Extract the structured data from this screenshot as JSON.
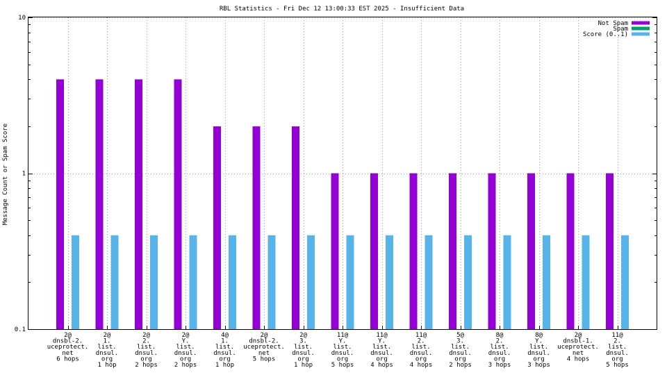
{
  "chart_data": {
    "type": "bar",
    "title": "RBL Statistics - Fri Dec 12 13:00:33 EST 2025 - Insufficient Data",
    "xlabel": "",
    "ylabel": "Message Count or Spam Score",
    "yscale": "log",
    "ylim": [
      0.1,
      10
    ],
    "yticks": [
      "10",
      "1",
      "0.1"
    ],
    "grid": true,
    "legend_position": "top-right",
    "categories": [
      [
        "2@",
        "dnsbl-2.",
        "uceprotect.",
        "net",
        "6 hops"
      ],
      [
        "2@",
        "1.",
        "list.",
        "dnsul.",
        "org",
        "1 hop"
      ],
      [
        "2@",
        "2.",
        "list.",
        "dnsul.",
        "org",
        "2 hops"
      ],
      [
        "2@",
        "Y.",
        "list.",
        "dnsul.",
        "org",
        "2 hops"
      ],
      [
        "4@",
        "1.",
        "list.",
        "dnsul.",
        "org",
        "1 hop"
      ],
      [
        "2@",
        "dnsbl-2.",
        "uceprotect.",
        "net",
        "5 hops"
      ],
      [
        "2@",
        "3.",
        "list.",
        "dnsul.",
        "org",
        "1 hop"
      ],
      [
        "11@",
        "Y.",
        "list.",
        "dnsul.",
        "org",
        "5 hops"
      ],
      [
        "11@",
        "Y.",
        "list.",
        "dnsul.",
        "org",
        "4 hops"
      ],
      [
        "11@",
        "2.",
        "list.",
        "dnsul.",
        "org",
        "4 hops"
      ],
      [
        "5@",
        "3.",
        "list.",
        "dnsul.",
        "org",
        "2 hops"
      ],
      [
        "8@",
        "2.",
        "list.",
        "dnsul.",
        "org",
        "3 hops"
      ],
      [
        "8@",
        "Y.",
        "list.",
        "dnsul.",
        "org",
        "3 hops"
      ],
      [
        "2@",
        "dnsbl-1.",
        "uceprotect.",
        "net",
        "4 hops"
      ],
      [
        "11@",
        "2.",
        "list.",
        "dnsul.",
        "org",
        "5 hops"
      ]
    ],
    "series": [
      {
        "name": "Not Spam",
        "color": "#9400d3",
        "values": [
          4,
          4,
          4,
          4,
          2,
          2,
          2,
          1,
          1,
          1,
          1,
          1,
          1,
          1,
          1
        ]
      },
      {
        "name": "Spam",
        "color": "#009e73",
        "values": [
          0,
          0,
          0,
          0,
          0,
          0,
          0,
          0,
          0,
          0,
          0,
          0,
          0,
          0,
          0
        ]
      },
      {
        "name": "Score (0..1)",
        "color": "#56b4e9",
        "values": [
          0.4,
          0.4,
          0.4,
          0.4,
          0.4,
          0.4,
          0.4,
          0.4,
          0.4,
          0.4,
          0.4,
          0.4,
          0.4,
          0.4,
          0.4
        ]
      }
    ]
  }
}
